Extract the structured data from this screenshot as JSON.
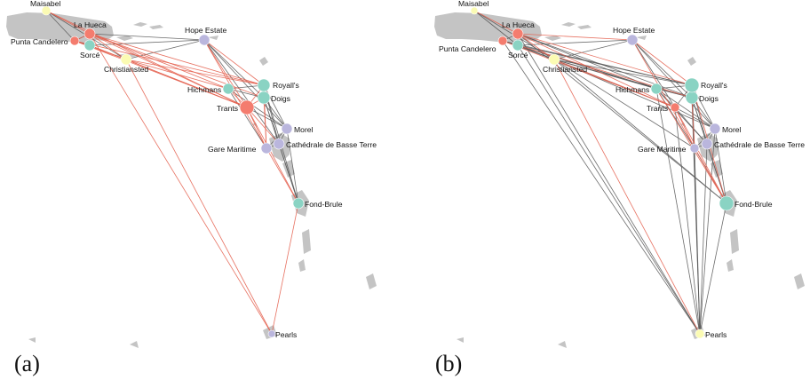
{
  "palette": {
    "salmon": "#f47c6e",
    "teal": "#8ad3c3",
    "lavender": "#bab6dd",
    "yellow": "#fbfbb3",
    "land": "#c4c4c4",
    "edge_red": "#e46250",
    "edge_gray": "#5b5b5b"
  },
  "sites": [
    {
      "id": "maisabel",
      "name": "Maisabel"
    },
    {
      "id": "la-hueca",
      "name": "La Hueca"
    },
    {
      "id": "punta-candelero",
      "name": "Punta Candelero"
    },
    {
      "id": "sorce",
      "name": "Sorcé"
    },
    {
      "id": "christiansted",
      "name": "Christiansted"
    },
    {
      "id": "hope-estate",
      "name": "Hope Estate"
    },
    {
      "id": "hichmans",
      "name": "Hichmans"
    },
    {
      "id": "royalls",
      "name": "Royall's"
    },
    {
      "id": "doigs",
      "name": "Doigs"
    },
    {
      "id": "trants",
      "name": "Trants"
    },
    {
      "id": "morel",
      "name": "Morel"
    },
    {
      "id": "cathedrale",
      "name": "Cathédrale de Basse Terre"
    },
    {
      "id": "gare-maritime",
      "name": "Gare Maritime"
    },
    {
      "id": "fond-brule",
      "name": "Fond-Brule"
    },
    {
      "id": "pearls",
      "name": "Pearls"
    }
  ],
  "panels": [
    {
      "caption": "(a)",
      "node_colors": {
        "maisabel": "yellow",
        "la-hueca": "salmon",
        "punta-candelero": "salmon",
        "sorce": "teal",
        "christiansted": "yellow",
        "hope-estate": "lavender",
        "hichmans": "teal",
        "royalls": "teal",
        "doigs": "teal",
        "trants": "salmon",
        "morel": "lavender",
        "cathedrale": "lavender",
        "gare-maritime": "lavender",
        "fond-brule": "teal",
        "pearls": "lavender"
      },
      "edges_red": [
        [
          "la-hueca",
          "christiansted"
        ],
        [
          "la-hueca",
          "sorce"
        ],
        [
          "la-hueca",
          "punta-candelero"
        ],
        [
          "la-hueca",
          "hichmans"
        ],
        [
          "la-hueca",
          "trants"
        ],
        [
          "la-hueca",
          "royalls"
        ],
        [
          "la-hueca",
          "doigs"
        ],
        [
          "la-hueca",
          "pearls"
        ],
        [
          "punta-candelero",
          "christiansted"
        ],
        [
          "punta-candelero",
          "trants"
        ],
        [
          "punta-candelero",
          "royalls"
        ],
        [
          "sorce",
          "trants"
        ],
        [
          "sorce",
          "christiansted"
        ],
        [
          "christiansted",
          "pearls"
        ],
        [
          "christiansted",
          "trants"
        ],
        [
          "christiansted",
          "royalls"
        ],
        [
          "christiansted",
          "hichmans"
        ],
        [
          "trants",
          "royalls"
        ],
        [
          "trants",
          "doigs"
        ],
        [
          "trants",
          "hichmans"
        ],
        [
          "trants",
          "gare-maritime"
        ],
        [
          "trants",
          "fond-brule"
        ],
        [
          "trants",
          "cathedrale"
        ],
        [
          "hope-estate",
          "trants"
        ],
        [
          "hope-estate",
          "royalls"
        ],
        [
          "hope-estate",
          "gare-maritime"
        ],
        [
          "gare-maritime",
          "fond-brule"
        ],
        [
          "fond-brule",
          "pearls"
        ],
        [
          "royalls",
          "gare-maritime"
        ],
        [
          "doigs",
          "gare-maritime"
        ],
        [
          "maisabel",
          "la-hueca"
        ],
        [
          "maisabel",
          "trants"
        ]
      ],
      "edges_gray": [
        [
          "la-hueca",
          "hope-estate"
        ],
        [
          "punta-candelero",
          "la-hueca"
        ],
        [
          "maisabel",
          "punta-candelero"
        ],
        [
          "sorce",
          "punta-candelero"
        ],
        [
          "christiansted",
          "hope-estate"
        ],
        [
          "hichmans",
          "royalls"
        ],
        [
          "hichmans",
          "doigs"
        ],
        [
          "royalls",
          "doigs"
        ],
        [
          "royalls",
          "morel"
        ],
        [
          "doigs",
          "morel"
        ],
        [
          "doigs",
          "cathedrale"
        ],
        [
          "morel",
          "cathedrale"
        ],
        [
          "morel",
          "gare-maritime"
        ],
        [
          "cathedrale",
          "gare-maritime"
        ],
        [
          "royalls",
          "cathedrale"
        ],
        [
          "royalls",
          "fond-brule"
        ],
        [
          "doigs",
          "fond-brule"
        ],
        [
          "hope-estate",
          "doigs"
        ],
        [
          "hope-estate",
          "morel"
        ],
        [
          "hope-estate",
          "cathedrale"
        ],
        [
          "hichmans",
          "morel"
        ],
        [
          "trants",
          "morel"
        ],
        [
          "cathedrale",
          "fond-brule"
        ],
        [
          "morel",
          "fond-brule"
        ],
        [
          "hichmans",
          "gare-maritime"
        ],
        [
          "maisabel",
          "christiansted"
        ],
        [
          "sorce",
          "hope-estate"
        ]
      ]
    },
    {
      "caption": "(b)",
      "node_colors": {
        "maisabel": "yellow",
        "la-hueca": "salmon",
        "punta-candelero": "salmon",
        "sorce": "teal",
        "christiansted": "yellow",
        "hope-estate": "lavender",
        "hichmans": "teal",
        "royalls": "teal",
        "doigs": "teal",
        "trants": "salmon",
        "morel": "lavender",
        "cathedrale": "lavender",
        "gare-maritime": "lavender",
        "fond-brule": "teal",
        "pearls": "yellow"
      },
      "edges_red": [
        [
          "la-hueca",
          "hope-estate"
        ],
        [
          "la-hueca",
          "christiansted"
        ],
        [
          "la-hueca",
          "trants"
        ],
        [
          "la-hueca",
          "royalls"
        ],
        [
          "christiansted",
          "pearls"
        ],
        [
          "christiansted",
          "trants"
        ],
        [
          "punta-candelero",
          "trants"
        ],
        [
          "trants",
          "fond-brule"
        ],
        [
          "trants",
          "gare-maritime"
        ],
        [
          "hope-estate",
          "royalls"
        ],
        [
          "hope-estate",
          "fond-brule"
        ],
        [
          "royalls",
          "fond-brule"
        ],
        [
          "sorce",
          "doigs"
        ],
        [
          "maisabel",
          "la-hueca"
        ],
        [
          "hichmans",
          "fond-brule"
        ],
        [
          "doigs",
          "gare-maritime"
        ]
      ],
      "edges_gray": [
        [
          "la-hueca",
          "sorce"
        ],
        [
          "la-hueca",
          "punta-candelero"
        ],
        [
          "la-hueca",
          "hichmans"
        ],
        [
          "la-hueca",
          "doigs"
        ],
        [
          "la-hueca",
          "fond-brule"
        ],
        [
          "la-hueca",
          "pearls"
        ],
        [
          "punta-candelero",
          "christiansted"
        ],
        [
          "punta-candelero",
          "royalls"
        ],
        [
          "punta-candelero",
          "hichmans"
        ],
        [
          "punta-candelero",
          "pearls"
        ],
        [
          "sorce",
          "christiansted"
        ],
        [
          "sorce",
          "royalls"
        ],
        [
          "sorce",
          "trants"
        ],
        [
          "sorce",
          "hichmans"
        ],
        [
          "sorce",
          "hope-estate"
        ],
        [
          "sorce",
          "pearls"
        ],
        [
          "christiansted",
          "hope-estate"
        ],
        [
          "christiansted",
          "royalls"
        ],
        [
          "christiansted",
          "hichmans"
        ],
        [
          "christiansted",
          "doigs"
        ],
        [
          "christiansted",
          "morel"
        ],
        [
          "christiansted",
          "gare-maritime"
        ],
        [
          "christiansted",
          "fond-brule"
        ],
        [
          "hope-estate",
          "doigs"
        ],
        [
          "hope-estate",
          "morel"
        ],
        [
          "hope-estate",
          "trants"
        ],
        [
          "hichmans",
          "royalls"
        ],
        [
          "hichmans",
          "doigs"
        ],
        [
          "hichmans",
          "trants"
        ],
        [
          "hichmans",
          "morel"
        ],
        [
          "hichmans",
          "cathedrale"
        ],
        [
          "hichmans",
          "gare-maritime"
        ],
        [
          "hichmans",
          "pearls"
        ],
        [
          "royalls",
          "doigs"
        ],
        [
          "royalls",
          "morel"
        ],
        [
          "royalls",
          "trants"
        ],
        [
          "royalls",
          "cathedrale"
        ],
        [
          "royalls",
          "gare-maritime"
        ],
        [
          "royalls",
          "pearls"
        ],
        [
          "doigs",
          "morel"
        ],
        [
          "doigs",
          "cathedrale"
        ],
        [
          "doigs",
          "fond-brule"
        ],
        [
          "doigs",
          "pearls"
        ],
        [
          "trants",
          "morel"
        ],
        [
          "trants",
          "cathedrale"
        ],
        [
          "trants",
          "pearls"
        ],
        [
          "morel",
          "cathedrale"
        ],
        [
          "morel",
          "gare-maritime"
        ],
        [
          "morel",
          "fond-brule"
        ],
        [
          "morel",
          "pearls"
        ],
        [
          "cathedrale",
          "gare-maritime"
        ],
        [
          "cathedrale",
          "fond-brule"
        ],
        [
          "cathedrale",
          "pearls"
        ],
        [
          "gare-maritime",
          "fond-brule"
        ],
        [
          "gare-maritime",
          "pearls"
        ],
        [
          "fond-brule",
          "pearls"
        ],
        [
          "maisabel",
          "christiansted"
        ],
        [
          "maisabel",
          "sorce"
        ]
      ]
    }
  ]
}
